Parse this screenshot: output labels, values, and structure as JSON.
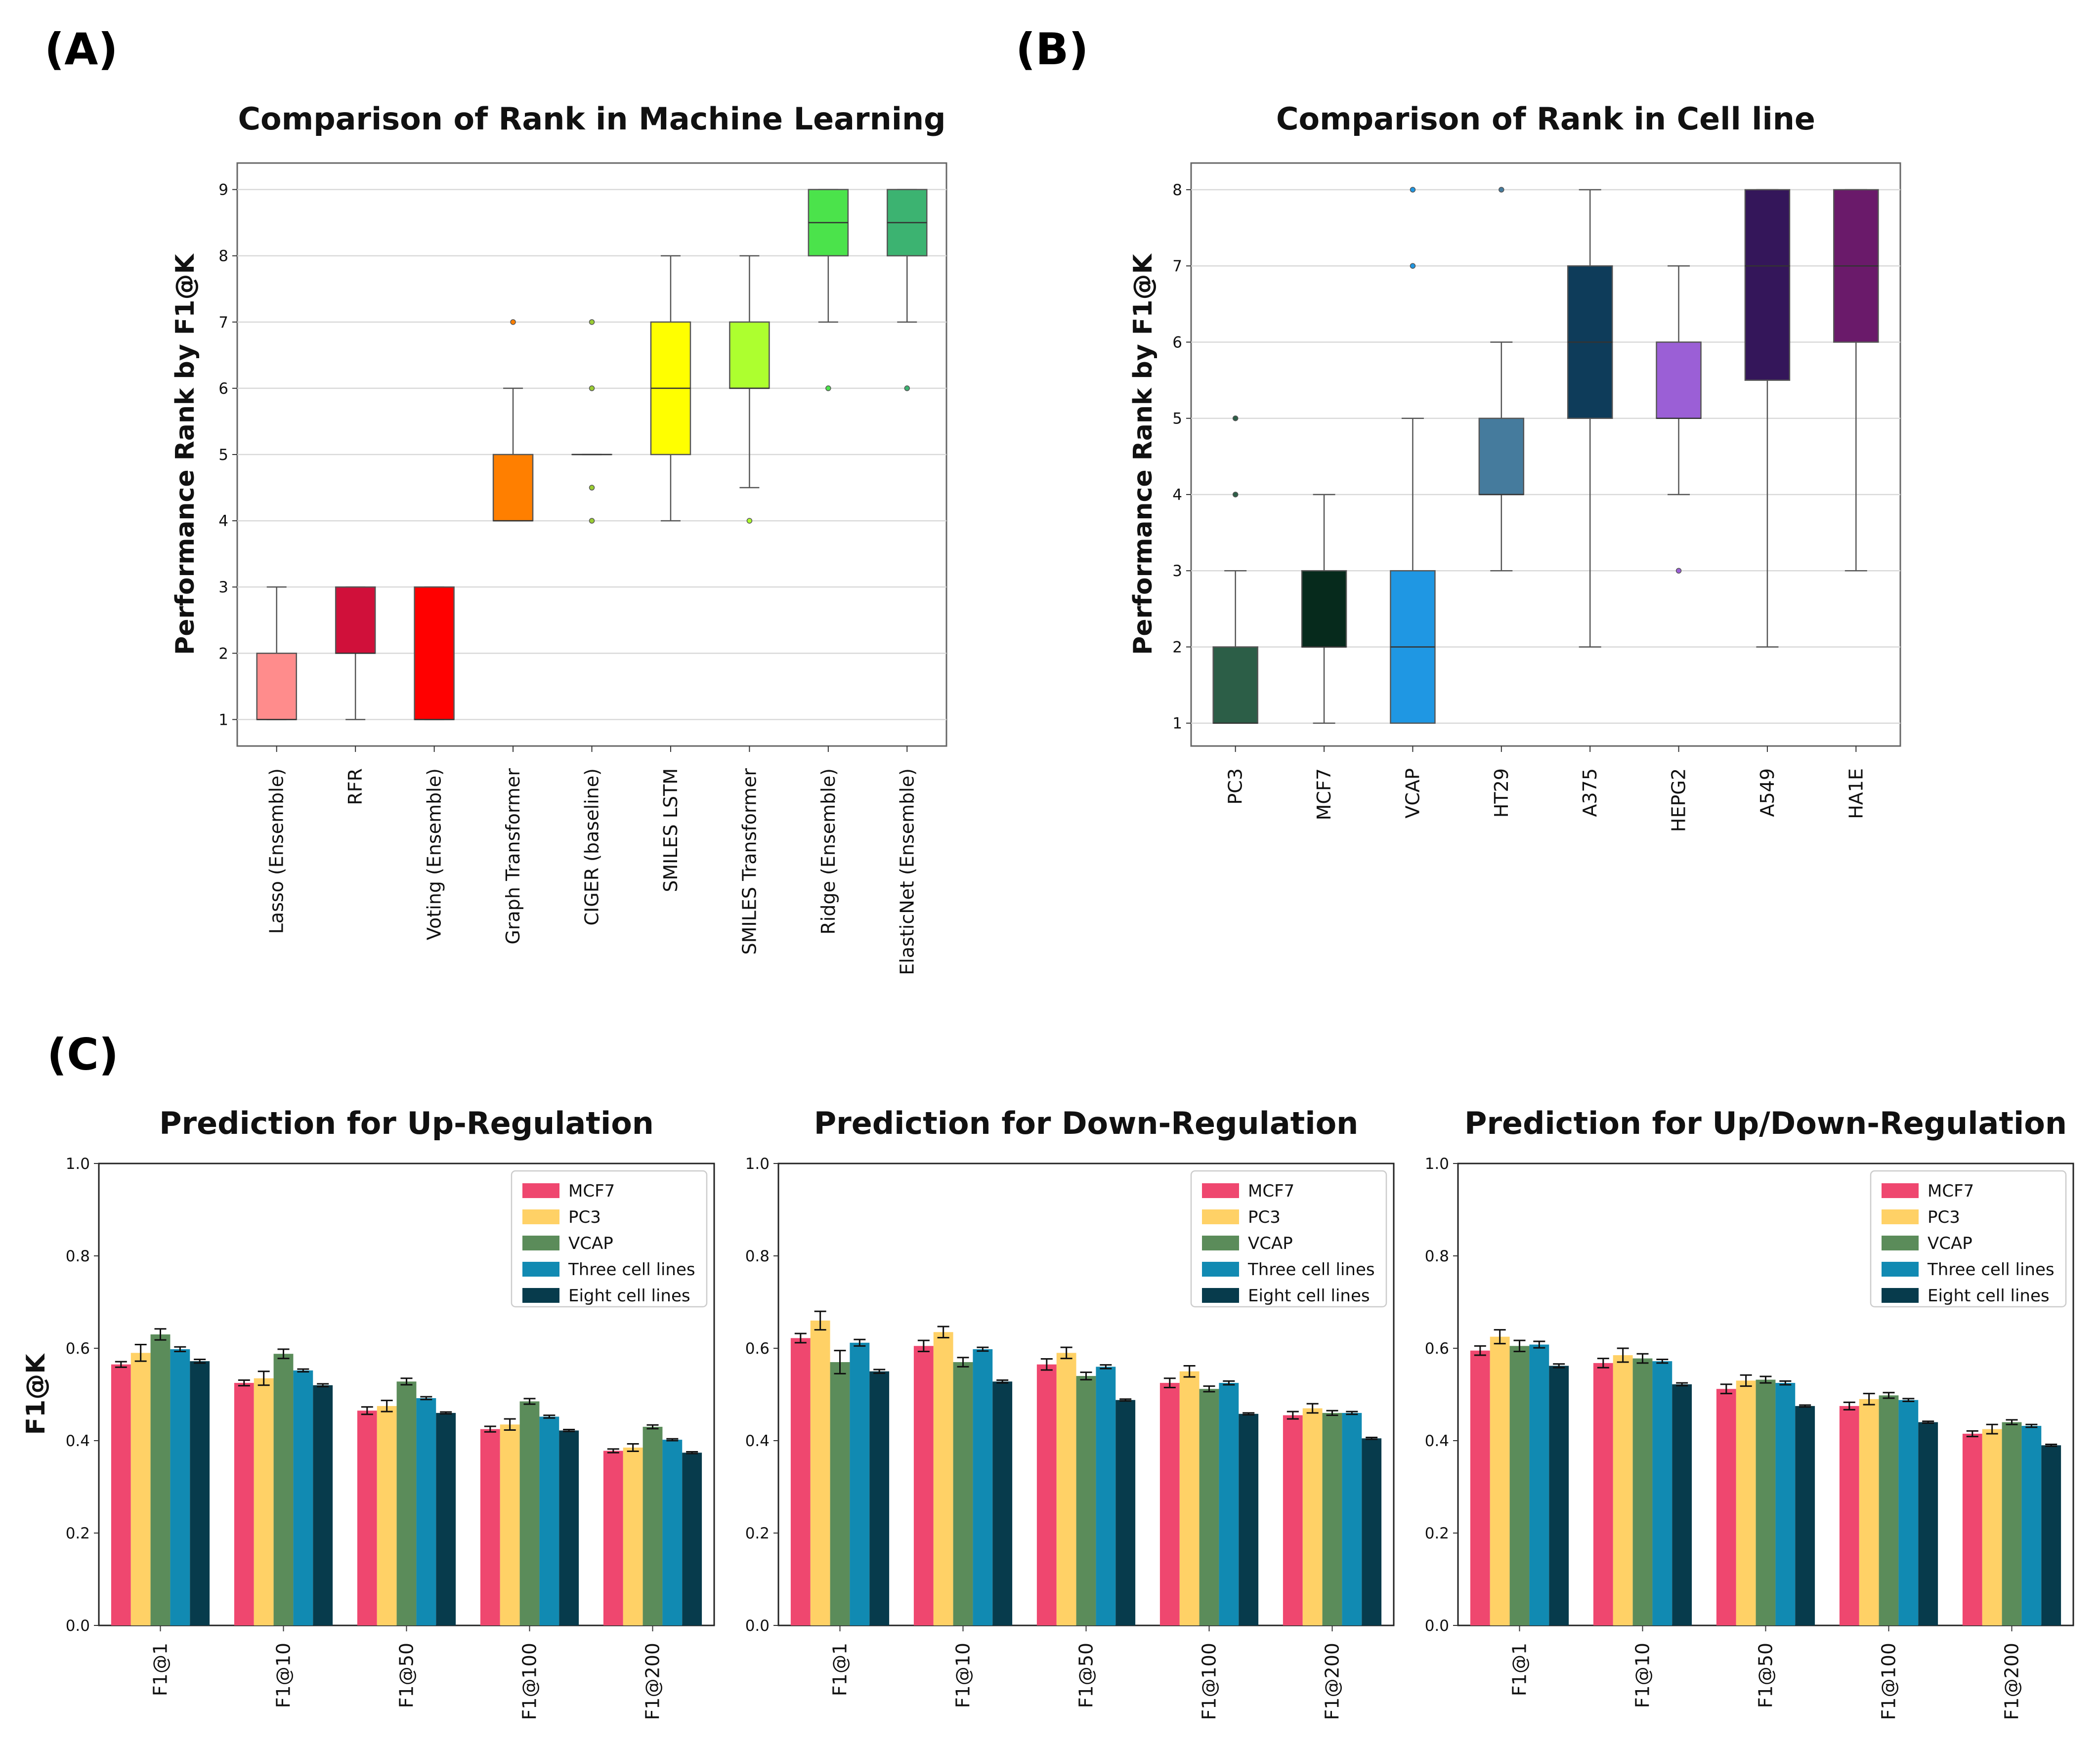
{
  "panels": {
    "a_label": "(A)",
    "b_label": "(B)",
    "c_label": "(C)"
  },
  "colors": {
    "series": [
      "#ef476f",
      "#ffd166",
      "#5b8c5a",
      "#118ab2",
      "#073b4c"
    ]
  },
  "chart_data": [
    {
      "id": "A",
      "type": "boxplot",
      "title": "Comparison of Rank in Machine Learning",
      "ylabel": "Performance Rank by F1@K",
      "xlabel": "",
      "ylim": [
        0.6,
        9.4
      ],
      "yticks": [
        1,
        2,
        3,
        4,
        5,
        6,
        7,
        8,
        9
      ],
      "grid": true,
      "categories": [
        "Lasso (Ensemble)",
        "RFR",
        "Voting (Ensemble)",
        "Graph Transformer",
        "CIGER (baseline)",
        "SMILES LSTM",
        "SMILES Transformer",
        "Ridge (Ensemble)",
        "ElasticNet (Ensemble)"
      ],
      "boxes": [
        {
          "q1": 1,
          "median": 1,
          "q3": 2,
          "whisker_low": 1,
          "whisker_high": 3,
          "outliers": [],
          "color": "#ff8c8c"
        },
        {
          "q1": 2,
          "median": 2,
          "q3": 3,
          "whisker_low": 1,
          "whisker_high": 3,
          "outliers": [],
          "color": "#d0103a"
        },
        {
          "q1": 1,
          "median": 1,
          "q3": 3,
          "whisker_low": 1,
          "whisker_high": 3,
          "outliers": [],
          "color": "#ff0000"
        },
        {
          "q1": 4,
          "median": 4,
          "q3": 5,
          "whisker_low": 4,
          "whisker_high": 6,
          "outliers": [
            7
          ],
          "color": "#ff7f00"
        },
        {
          "q1": 5,
          "median": 5,
          "q3": 5,
          "whisker_low": 5,
          "whisker_high": 5,
          "outliers": [
            4,
            4.5,
            6,
            7
          ],
          "color": "#9acd32"
        },
        {
          "q1": 5,
          "median": 6,
          "q3": 7,
          "whisker_low": 4,
          "whisker_high": 8,
          "outliers": [],
          "color": "#ffff00"
        },
        {
          "q1": 6,
          "median": 6,
          "q3": 7,
          "whisker_low": 4.5,
          "whisker_high": 8,
          "outliers": [
            4
          ],
          "color": "#adff2f"
        },
        {
          "q1": 8,
          "median": 8.5,
          "q3": 9,
          "whisker_low": 7,
          "whisker_high": 9,
          "outliers": [
            6
          ],
          "color": "#4be34b"
        },
        {
          "q1": 8,
          "median": 8.5,
          "q3": 9,
          "whisker_low": 7,
          "whisker_high": 9,
          "outliers": [
            6
          ],
          "color": "#3cb371"
        }
      ]
    },
    {
      "id": "B",
      "type": "boxplot",
      "title": "Comparison of Rank in Cell line",
      "ylabel": "Performance Rank by F1@K",
      "xlabel": "",
      "ylim": [
        0.7,
        8.35
      ],
      "yticks": [
        1,
        2,
        3,
        4,
        5,
        6,
        7,
        8
      ],
      "grid": true,
      "categories": [
        "PC3",
        "MCF7",
        "VCAP",
        "HT29",
        "A375",
        "HEPG2",
        "A549",
        "HA1E"
      ],
      "boxes": [
        {
          "q1": 1,
          "median": 1,
          "q3": 2,
          "whisker_low": 1,
          "whisker_high": 3,
          "outliers": [
            4,
            5
          ],
          "color": "#2c5e47"
        },
        {
          "q1": 2,
          "median": 2,
          "q3": 3,
          "whisker_low": 1,
          "whisker_high": 4,
          "outliers": [],
          "color": "#062a1c"
        },
        {
          "q1": 1,
          "median": 2,
          "q3": 3,
          "whisker_low": 1,
          "whisker_high": 5,
          "outliers": [
            7,
            8
          ],
          "color": "#1f97e3"
        },
        {
          "q1": 4,
          "median": 4,
          "q3": 5,
          "whisker_low": 3,
          "whisker_high": 6,
          "outliers": [
            8
          ],
          "color": "#457b9d"
        },
        {
          "q1": 5,
          "median": 6,
          "q3": 7,
          "whisker_low": 2,
          "whisker_high": 8,
          "outliers": [],
          "color": "#0e3c5a"
        },
        {
          "q1": 5,
          "median": 5,
          "q3": 6,
          "whisker_low": 4,
          "whisker_high": 7,
          "outliers": [
            3
          ],
          "color": "#9b5fd6"
        },
        {
          "q1": 5.5,
          "median": 7,
          "q3": 8,
          "whisker_low": 2,
          "whisker_high": 8,
          "outliers": [],
          "color": "#34165a"
        },
        {
          "q1": 6,
          "median": 7,
          "q3": 8,
          "whisker_low": 3,
          "whisker_high": 8,
          "outliers": [],
          "color": "#6a1a6a"
        }
      ]
    },
    {
      "id": "C1",
      "type": "bar",
      "title": "Prediction for Up-Regulation",
      "ylabel": "F1@K",
      "xlabel": "",
      "ylim": [
        0.0,
        1.0
      ],
      "yticks": [
        "0.0",
        "0.2",
        "0.4",
        "0.6",
        "0.8",
        "1.0"
      ],
      "legend_position": "top-right",
      "categories": [
        "F1@1",
        "F1@10",
        "F1@50",
        "F1@100",
        "F1@200"
      ],
      "series": [
        {
          "name": "MCF7",
          "values": [
            0.565,
            0.525,
            0.465,
            0.425,
            0.378
          ],
          "errors": [
            0.006,
            0.006,
            0.008,
            0.006,
            0.004
          ]
        },
        {
          "name": "PC3",
          "values": [
            0.59,
            0.535,
            0.475,
            0.435,
            0.385
          ],
          "errors": [
            0.018,
            0.015,
            0.012,
            0.012,
            0.008
          ]
        },
        {
          "name": "VCAP",
          "values": [
            0.63,
            0.588,
            0.528,
            0.485,
            0.43
          ],
          "errors": [
            0.012,
            0.01,
            0.007,
            0.006,
            0.004
          ]
        },
        {
          "name": "Three cell lines",
          "values": [
            0.598,
            0.552,
            0.492,
            0.452,
            0.402
          ],
          "errors": [
            0.005,
            0.003,
            0.003,
            0.003,
            0.002
          ]
        },
        {
          "name": "Eight cell lines",
          "values": [
            0.572,
            0.52,
            0.46,
            0.422,
            0.374
          ],
          "errors": [
            0.004,
            0.003,
            0.002,
            0.002,
            0.002
          ]
        }
      ]
    },
    {
      "id": "C2",
      "type": "bar",
      "title": "Prediction for Down-Regulation",
      "ylabel": "",
      "xlabel": "",
      "ylim": [
        0.0,
        1.0
      ],
      "yticks": [
        "0.0",
        "0.2",
        "0.4",
        "0.6",
        "0.8",
        "1.0"
      ],
      "legend_position": "top-right",
      "categories": [
        "F1@1",
        "F1@10",
        "F1@50",
        "F1@100",
        "F1@200"
      ],
      "series": [
        {
          "name": "MCF7",
          "values": [
            0.622,
            0.605,
            0.565,
            0.525,
            0.455
          ],
          "errors": [
            0.01,
            0.012,
            0.012,
            0.01,
            0.008
          ]
        },
        {
          "name": "PC3",
          "values": [
            0.66,
            0.635,
            0.59,
            0.55,
            0.47
          ],
          "errors": [
            0.02,
            0.012,
            0.012,
            0.012,
            0.01
          ]
        },
        {
          "name": "VCAP",
          "values": [
            0.57,
            0.57,
            0.54,
            0.512,
            0.46
          ],
          "errors": [
            0.025,
            0.01,
            0.008,
            0.006,
            0.005
          ]
        },
        {
          "name": "Three cell lines",
          "values": [
            0.612,
            0.598,
            0.56,
            0.525,
            0.46
          ],
          "errors": [
            0.007,
            0.004,
            0.004,
            0.004,
            0.003
          ]
        },
        {
          "name": "Eight cell lines",
          "values": [
            0.55,
            0.528,
            0.488,
            0.458,
            0.405
          ],
          "errors": [
            0.004,
            0.003,
            0.002,
            0.002,
            0.002
          ]
        }
      ]
    },
    {
      "id": "C3",
      "type": "bar",
      "title": "Prediction for Up/Down-Regulation",
      "ylabel": "",
      "xlabel": "",
      "ylim": [
        0.0,
        1.0
      ],
      "yticks": [
        "0.0",
        "0.2",
        "0.4",
        "0.6",
        "0.8",
        "1.0"
      ],
      "legend_position": "top-right",
      "categories": [
        "F1@1",
        "F1@10",
        "F1@50",
        "F1@100",
        "F1@200"
      ],
      "series": [
        {
          "name": "MCF7",
          "values": [
            0.595,
            0.568,
            0.512,
            0.475,
            0.415
          ],
          "errors": [
            0.01,
            0.01,
            0.01,
            0.008,
            0.006
          ]
        },
        {
          "name": "PC3",
          "values": [
            0.625,
            0.585,
            0.53,
            0.49,
            0.425
          ],
          "errors": [
            0.015,
            0.015,
            0.012,
            0.012,
            0.01
          ]
        },
        {
          "name": "VCAP",
          "values": [
            0.605,
            0.578,
            0.532,
            0.498,
            0.44
          ],
          "errors": [
            0.012,
            0.01,
            0.007,
            0.006,
            0.005
          ]
        },
        {
          "name": "Three cell lines",
          "values": [
            0.608,
            0.572,
            0.525,
            0.488,
            0.432
          ],
          "errors": [
            0.007,
            0.004,
            0.004,
            0.003,
            0.003
          ]
        },
        {
          "name": "Eight cell lines",
          "values": [
            0.562,
            0.522,
            0.475,
            0.44,
            0.39
          ],
          "errors": [
            0.004,
            0.003,
            0.002,
            0.002,
            0.002
          ]
        }
      ]
    }
  ]
}
